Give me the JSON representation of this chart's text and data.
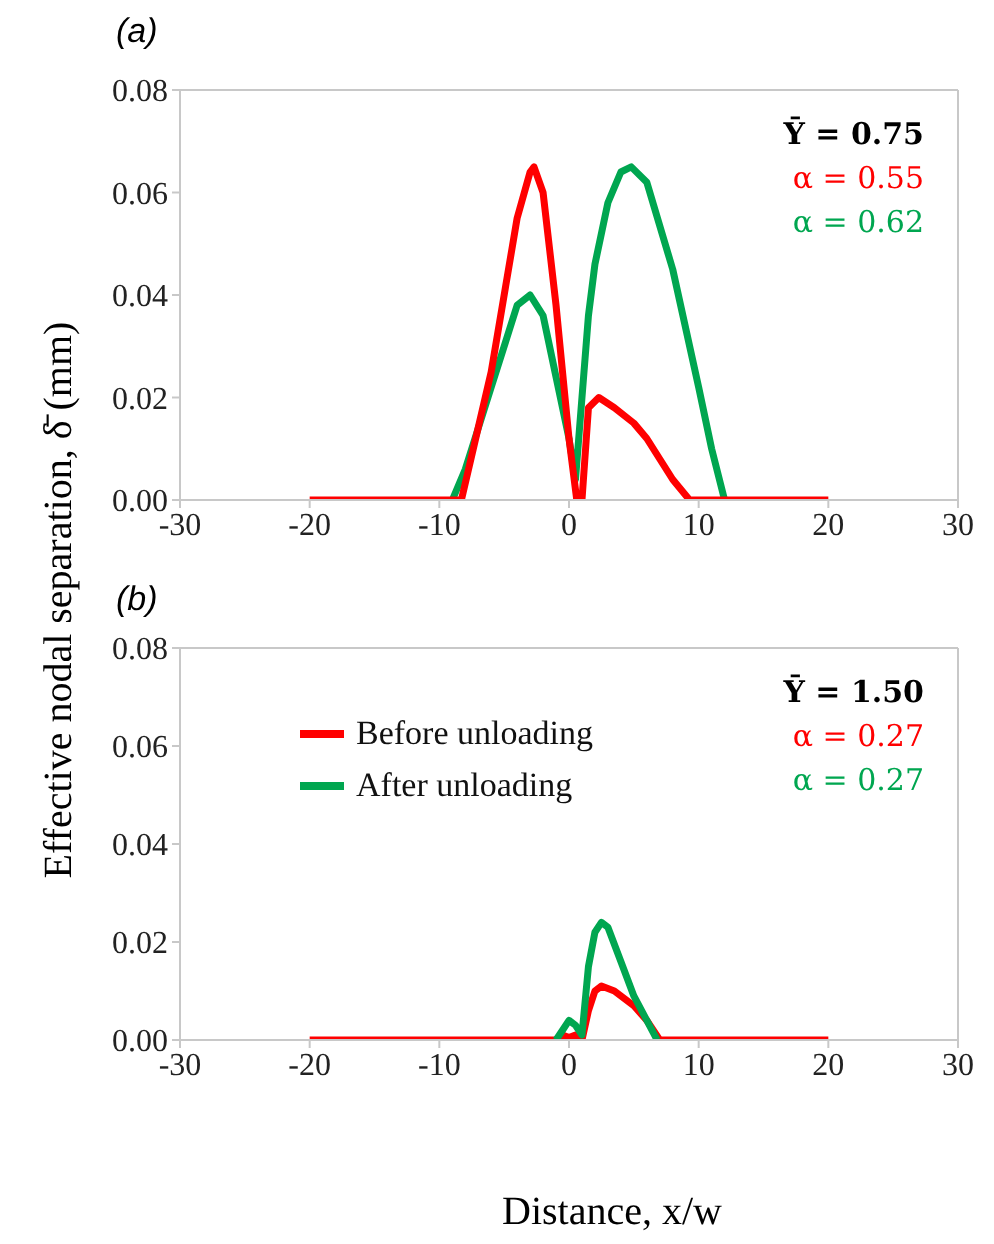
{
  "chart_data": [
    {
      "type": "line",
      "title": "(a)",
      "ylabel": "Effective nodal separation, δ̄ (mm)",
      "xlim": [
        -30,
        30
      ],
      "xticks": [
        -30,
        -20,
        -10,
        0,
        10,
        20,
        30
      ],
      "ylim": [
        0,
        0.08
      ],
      "yticks": [
        {
          "value": 0,
          "label": "0.00"
        },
        {
          "value": 0.02,
          "label": "0.02"
        },
        {
          "value": 0.04,
          "label": "0.04"
        },
        {
          "value": 0.06,
          "label": "0.06"
        },
        {
          "value": 0.08,
          "label": "0.08"
        }
      ],
      "marker": "none",
      "line_style": "solid",
      "annotations": [
        "Ȳ = 0.75",
        "α = 0.55",
        "α = 0.62"
      ],
      "series": [
        {
          "color": "#00a650",
          "x": [
            -9,
            -8,
            -6,
            -4,
            -3,
            -2,
            -1,
            0,
            0.5,
            1,
            1.5,
            2,
            3,
            4,
            4.8,
            6,
            8,
            10,
            11,
            12
          ],
          "values": [
            0,
            0.006,
            0.022,
            0.038,
            0.04,
            0.036,
            0.024,
            0.012,
            0.004,
            0.02,
            0.036,
            0.046,
            0.058,
            0.064,
            0.065,
            0.062,
            0.045,
            0.022,
            0.01,
            0
          ]
        },
        {
          "color": "#ff0000",
          "x": [
            -20,
            -8.3,
            -6,
            -4,
            -3,
            -2.7,
            -2,
            -1,
            0,
            0.6,
            1,
            1.5,
            2.3,
            3.5,
            5,
            6,
            7,
            8,
            9.3,
            20
          ],
          "values": [
            0,
            0,
            0.025,
            0.055,
            0.064,
            0.065,
            0.06,
            0.038,
            0.012,
            0,
            0,
            0.018,
            0.02,
            0.018,
            0.015,
            0.012,
            0.008,
            0.004,
            0,
            0
          ]
        }
      ]
    },
    {
      "type": "line",
      "title": "(b)",
      "xlabel": "Distance, x/w",
      "xlim": [
        -30,
        30
      ],
      "xticks": [
        -30,
        -20,
        -10,
        0,
        10,
        20,
        30
      ],
      "ylim": [
        0,
        0.08
      ],
      "yticks": [
        {
          "value": 0,
          "label": "0.00"
        },
        {
          "value": 0.02,
          "label": "0.02"
        },
        {
          "value": 0.04,
          "label": "0.04"
        },
        {
          "value": 0.06,
          "label": "0.06"
        },
        {
          "value": 0.08,
          "label": "0.08"
        }
      ],
      "marker": "none",
      "line_style": "solid",
      "legend": "top left",
      "annotations": [
        "Ȳ = 1.50",
        "α = 0.27",
        "α = 0.27"
      ],
      "series": [
        {
          "name": "Before unloading",
          "color": "#ff0000",
          "x": [
            -20,
            -1,
            -0.5,
            0,
            0.5,
            1,
            1.5,
            2,
            2.5,
            3.5,
            5,
            6,
            7,
            20
          ],
          "values": [
            0,
            0,
            0.001,
            0.0005,
            0.001,
            0,
            0.006,
            0.01,
            0.011,
            0.01,
            0.007,
            0.004,
            0,
            0
          ]
        },
        {
          "name": "After unloading",
          "color": "#00a650",
          "x": [
            -1,
            -0.5,
            0,
            0.5,
            1,
            1.5,
            2,
            2.5,
            3,
            4,
            5,
            6,
            6.8
          ],
          "values": [
            0,
            0.002,
            0.004,
            0.003,
            0.001,
            0.015,
            0.022,
            0.024,
            0.023,
            0.016,
            0.009,
            0.004,
            0
          ]
        }
      ]
    }
  ]
}
